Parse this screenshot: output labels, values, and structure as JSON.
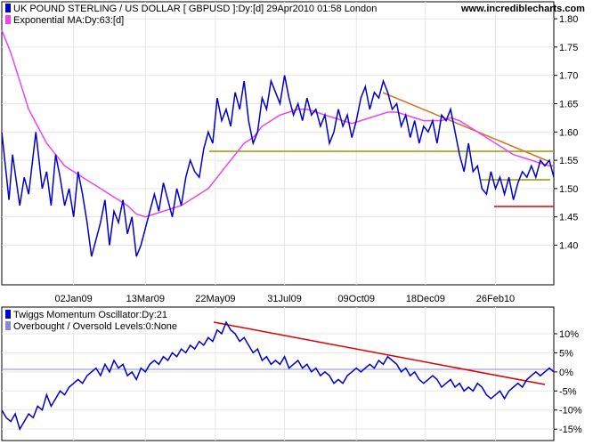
{
  "site": "www.incrediblecharts.com",
  "chart_data": [
    {
      "type": "line",
      "title": "UK POUND STERLING / US DOLLAR [ GBPUSD ]:Dy:[d]  29Apr2010 01:58 London",
      "legend": [
        {
          "name": "UK POUND STERLING / US DOLLAR [ GBPUSD ]:Dy:[d]  29Apr2010 01:58 London",
          "color": "#0000cc"
        },
        {
          "name": "Exponential MA:Dy:63:[d]",
          "color": "#ee44ee"
        }
      ],
      "ylim": [
        1.33,
        1.83
      ],
      "yticks": [
        1.4,
        1.45,
        1.5,
        1.55,
        1.6,
        1.65,
        1.7,
        1.75,
        1.8
      ],
      "ytick_labels": [
        "1.40",
        "1.45",
        "1.50",
        "1.55",
        "1.60",
        "1.65",
        "1.70",
        "1.75",
        "1.80"
      ],
      "xlim": [
        0,
        615
      ],
      "xticks": [
        80,
        160,
        238,
        315,
        395,
        472,
        550
      ],
      "xtick_labels": [
        "02Jan09",
        "13Mar09",
        "22May09",
        "31Jul09",
        "09Oct09",
        "18Dec09",
        "26Feb10"
      ],
      "series": [
        {
          "name": "UK POUND STERLING / US DOLLAR",
          "color": "#0000cc",
          "x": [
            0,
            8,
            12,
            20,
            25,
            30,
            38,
            45,
            50,
            55,
            60,
            65,
            70,
            75,
            80,
            85,
            90,
            95,
            100,
            105,
            110,
            115,
            120,
            125,
            130,
            135,
            140,
            145,
            150,
            155,
            160,
            165,
            170,
            175,
            180,
            185,
            190,
            195,
            200,
            205,
            210,
            215,
            220,
            225,
            230,
            235,
            240,
            245,
            250,
            255,
            260,
            265,
            270,
            275,
            280,
            285,
            290,
            295,
            300,
            305,
            310,
            315,
            320,
            325,
            330,
            335,
            340,
            345,
            350,
            355,
            360,
            365,
            370,
            375,
            380,
            385,
            390,
            395,
            400,
            405,
            410,
            415,
            420,
            425,
            430,
            435,
            440,
            445,
            450,
            455,
            460,
            465,
            470,
            475,
            480,
            485,
            490,
            495,
            500,
            505,
            510,
            515,
            520,
            525,
            530,
            535,
            540,
            545,
            550,
            555,
            560,
            565,
            570,
            575,
            580,
            585,
            590,
            595,
            600,
            605,
            610,
            615
          ],
          "y": [
            1.6,
            1.48,
            1.56,
            1.47,
            1.52,
            1.49,
            1.6,
            1.5,
            1.53,
            1.47,
            1.56,
            1.52,
            1.47,
            1.5,
            1.45,
            1.53,
            1.49,
            1.44,
            1.38,
            1.41,
            1.44,
            1.48,
            1.4,
            1.46,
            1.44,
            1.48,
            1.42,
            1.45,
            1.38,
            1.4,
            1.43,
            1.46,
            1.49,
            1.46,
            1.51,
            1.48,
            1.45,
            1.5,
            1.47,
            1.52,
            1.55,
            1.53,
            1.52,
            1.57,
            1.6,
            1.58,
            1.66,
            1.62,
            1.64,
            1.61,
            1.67,
            1.64,
            1.69,
            1.62,
            1.58,
            1.6,
            1.66,
            1.64,
            1.69,
            1.67,
            1.65,
            1.7,
            1.66,
            1.63,
            1.65,
            1.62,
            1.66,
            1.63,
            1.64,
            1.61,
            1.63,
            1.58,
            1.6,
            1.64,
            1.61,
            1.63,
            1.59,
            1.62,
            1.66,
            1.68,
            1.64,
            1.67,
            1.66,
            1.69,
            1.67,
            1.64,
            1.65,
            1.61,
            1.63,
            1.59,
            1.62,
            1.58,
            1.61,
            1.6,
            1.62,
            1.58,
            1.63,
            1.62,
            1.64,
            1.6,
            1.56,
            1.53,
            1.58,
            1.53,
            1.54,
            1.5,
            1.49,
            1.53,
            1.5,
            1.52,
            1.49,
            1.52,
            1.48,
            1.51,
            1.53,
            1.52,
            1.54,
            1.52,
            1.55,
            1.54,
            1.55,
            1.52
          ]
        },
        {
          "name": "Exponential MA:Dy:63:[d]",
          "color": "#ee44ee",
          "x": [
            0,
            10,
            20,
            30,
            40,
            50,
            60,
            70,
            80,
            90,
            100,
            110,
            120,
            130,
            140,
            150,
            160,
            170,
            180,
            190,
            200,
            210,
            220,
            230,
            240,
            250,
            260,
            270,
            280,
            290,
            300,
            310,
            320,
            330,
            340,
            350,
            360,
            370,
            380,
            390,
            400,
            410,
            420,
            430,
            440,
            450,
            460,
            470,
            480,
            490,
            500,
            510,
            520,
            530,
            540,
            550,
            560,
            570,
            580,
            590,
            600,
            610,
            615
          ],
          "y": [
            1.78,
            1.74,
            1.69,
            1.64,
            1.61,
            1.58,
            1.56,
            1.54,
            1.53,
            1.52,
            1.51,
            1.5,
            1.49,
            1.48,
            1.47,
            1.455,
            1.45,
            1.455,
            1.46,
            1.465,
            1.47,
            1.48,
            1.49,
            1.5,
            1.52,
            1.54,
            1.56,
            1.58,
            1.59,
            1.61,
            1.62,
            1.63,
            1.635,
            1.64,
            1.64,
            1.635,
            1.63,
            1.625,
            1.62,
            1.615,
            1.62,
            1.625,
            1.63,
            1.635,
            1.635,
            1.63,
            1.625,
            1.62,
            1.62,
            1.62,
            1.625,
            1.62,
            1.61,
            1.6,
            1.59,
            1.58,
            1.57,
            1.56,
            1.555,
            1.55,
            1.545,
            1.54,
            1.54
          ]
        }
      ]
    },
    {
      "type": "line",
      "title": "Twiggs Momentum Oscillator:Dy:21",
      "legend": [
        {
          "name": "Twiggs Momentum Oscillator:Dy:21",
          "color": "#0000cc"
        },
        {
          "name": "Overbought / Oversold Levels:0:None",
          "color": "#8888dd"
        }
      ],
      "ylim": [
        -18,
        17
      ],
      "yticks": [
        -15,
        -10,
        -5,
        0,
        5,
        10
      ],
      "ytick_labels": [
        "-15%",
        "-10%",
        "-5%",
        "0%",
        "5%",
        "10%"
      ],
      "xlim": [
        0,
        615
      ],
      "series": [
        {
          "name": "Twiggs Momentum Oscillator",
          "color": "#0000cc",
          "x": [
            0,
            5,
            10,
            15,
            20,
            25,
            30,
            35,
            40,
            45,
            50,
            55,
            60,
            65,
            70,
            75,
            80,
            85,
            90,
            95,
            100,
            105,
            110,
            115,
            120,
            125,
            130,
            135,
            140,
            145,
            150,
            155,
            160,
            165,
            170,
            175,
            180,
            185,
            190,
            195,
            200,
            205,
            210,
            215,
            220,
            225,
            230,
            235,
            240,
            245,
            250,
            255,
            260,
            265,
            270,
            275,
            280,
            285,
            290,
            295,
            300,
            305,
            310,
            315,
            320,
            325,
            330,
            335,
            340,
            345,
            350,
            355,
            360,
            365,
            370,
            375,
            380,
            385,
            390,
            395,
            400,
            405,
            410,
            415,
            420,
            425,
            430,
            435,
            440,
            445,
            450,
            455,
            460,
            465,
            470,
            475,
            480,
            485,
            490,
            495,
            500,
            505,
            510,
            515,
            520,
            525,
            530,
            535,
            540,
            545,
            550,
            555,
            560,
            565,
            570,
            575,
            580,
            585,
            590,
            595,
            600,
            605,
            610,
            615
          ],
          "y": [
            -10,
            -12,
            -13,
            -11,
            -15,
            -13,
            -11,
            -12,
            -9,
            -10,
            -6,
            -9,
            -7,
            -5,
            -6,
            -4,
            -3,
            -2,
            -3,
            -1,
            0,
            1,
            -1,
            2,
            0,
            3,
            1,
            2,
            -1,
            0,
            -2,
            1,
            0,
            2,
            3,
            2,
            4,
            3,
            5,
            4,
            6,
            5,
            7,
            6,
            8,
            7,
            9,
            8,
            11,
            10,
            13,
            11,
            10,
            8,
            9,
            7,
            5,
            6,
            3,
            4,
            2,
            3,
            2,
            4,
            1,
            2,
            3,
            1,
            2,
            0,
            1,
            -1,
            0,
            -1,
            -3,
            -2,
            -3,
            -1,
            0,
            1,
            0,
            1,
            2,
            1,
            3,
            2,
            4,
            3,
            2,
            0,
            1,
            -1,
            0,
            -2,
            -3,
            -2,
            -1,
            -2,
            -4,
            -3,
            -2,
            -4,
            -3,
            -5,
            -4,
            -5,
            -3,
            -4,
            -6,
            -7,
            -6,
            -5,
            -7,
            -5,
            -4,
            -3,
            -4,
            -2,
            -1,
            0,
            -1,
            0,
            1,
            0
          ]
        }
      ]
    }
  ]
}
